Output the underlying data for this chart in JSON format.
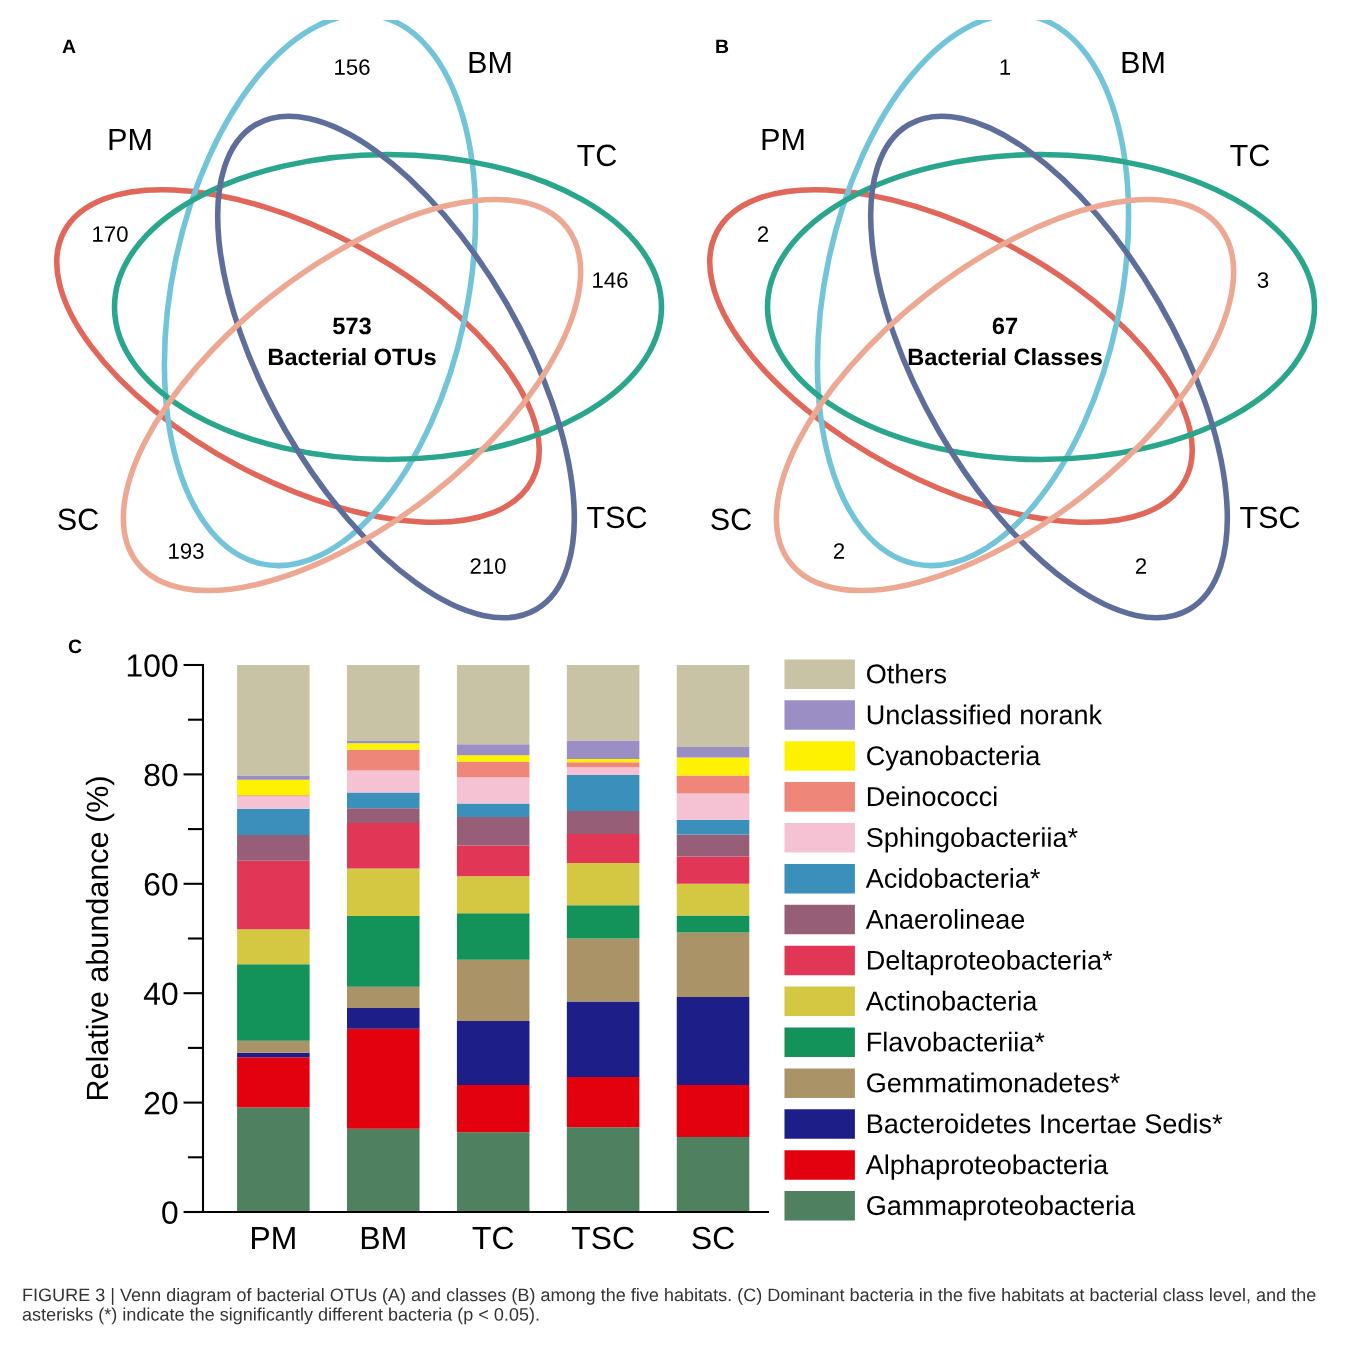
{
  "chart_data": [
    {
      "type": "other",
      "title": "A",
      "categories": [
        "PM",
        "BM",
        "TC",
        "TSC",
        "SC"
      ],
      "values": [
        170,
        156,
        146,
        210,
        193
      ],
      "data_labels": true,
      "colors": [
        "#e0675a",
        "#72c4d8",
        "#2aa68c",
        "#5e6e9b",
        "#eda894"
      ],
      "annotations": [
        "573",
        "Bacterial OTUs"
      ]
    },
    {
      "type": "other",
      "title": "B",
      "categories": [
        "PM",
        "BM",
        "TC",
        "TSC",
        "SC"
      ],
      "values": [
        2,
        1,
        3,
        2,
        2
      ],
      "data_labels": true,
      "colors": [
        "#e0675a",
        "#72c4d8",
        "#2aa68c",
        "#5e6e9b",
        "#eda894"
      ],
      "annotations": [
        "67",
        "Bacterial Classes"
      ]
    },
    {
      "type": "bar",
      "title": "C",
      "stacked": true,
      "ylabel": "Relative abundance (%)",
      "categories": [
        "PM",
        "BM",
        "TC",
        "TSC",
        "SC"
      ],
      "ylim": [
        0,
        100
      ],
      "yticks": [
        0,
        {
          "value": 10,
          "label": null
        },
        20,
        {
          "value": 30,
          "label": null
        },
        40,
        {
          "value": 50,
          "label": null
        },
        60,
        {
          "value": 70,
          "label": null
        },
        80,
        {
          "value": 90,
          "label": null
        },
        100
      ],
      "grid": false,
      "legend": "right",
      "series": [
        {
          "name": "Gammaproteobacteria",
          "color": "#4f8060",
          "values": [
            19.1,
            15.2,
            14.6,
            15.5,
            13.7
          ]
        },
        {
          "name": "Alphaproteobacteria",
          "color": "#e3000f",
          "values": [
            9.2,
            18.3,
            8.6,
            9.2,
            9.5
          ]
        },
        {
          "name": "Bacteroidetes Incertae Sedis*",
          "color": "#1d1e87",
          "values": [
            0.8,
            3.8,
            11.7,
            13.8,
            16.1
          ]
        },
        {
          "name": "Gemmatimonadetes*",
          "color": "#ab9368",
          "values": [
            2.2,
            3.9,
            11.2,
            11.5,
            11.8
          ]
        },
        {
          "name": "Flavobacteriia*",
          "color": "#13925a",
          "values": [
            14.0,
            12.9,
            8.5,
            6.1,
            3.1
          ]
        },
        {
          "name": "Actinobacteria",
          "color": "#d4c843",
          "values": [
            6.4,
            8.7,
            6.8,
            7.7,
            5.8
          ]
        },
        {
          "name": "Deltaproteobacteria*",
          "color": "#e23657",
          "values": [
            12.5,
            8.3,
            5.6,
            5.3,
            5.0
          ]
        },
        {
          "name": "Anaerolineae",
          "color": "#965f77",
          "values": [
            4.7,
            2.7,
            5.2,
            4.2,
            4.0
          ]
        },
        {
          "name": "Acidobacteria*",
          "color": "#3a8fbb",
          "values": [
            4.8,
            2.9,
            2.5,
            6.6,
            2.7
          ]
        },
        {
          "name": "Sphingobacteriia*",
          "color": "#f4c2d2",
          "values": [
            2.3,
            4.0,
            4.8,
            1.4,
            4.8
          ]
        },
        {
          "name": "Deinococci",
          "color": "#ee8679",
          "values": [
            0.2,
            3.8,
            2.8,
            0.9,
            3.3
          ]
        },
        {
          "name": "Cyanobacteria",
          "color": "#fff200",
          "values": [
            2.8,
            1.2,
            1.2,
            0.6,
            3.3
          ]
        },
        {
          "name": "Unclassified norank",
          "color": "#9b8ec4",
          "values": [
            0.8,
            0.4,
            2.0,
            3.4,
            1.9
          ]
        },
        {
          "name": "Others",
          "color": "#c8c3a5",
          "values": [
            20.2,
            13.9,
            14.5,
            13.8,
            15.0
          ]
        }
      ],
      "annotations": [
        "FIGURE 3 | Venn diagram of bacterial OTUs (A) and classes (B) among the five habitats. (C) Dominant bacteria in the five habitats at bacterial class level, and the asterisks (*) indicate the significantly different bacteria (p < 0.05)."
      ]
    }
  ]
}
